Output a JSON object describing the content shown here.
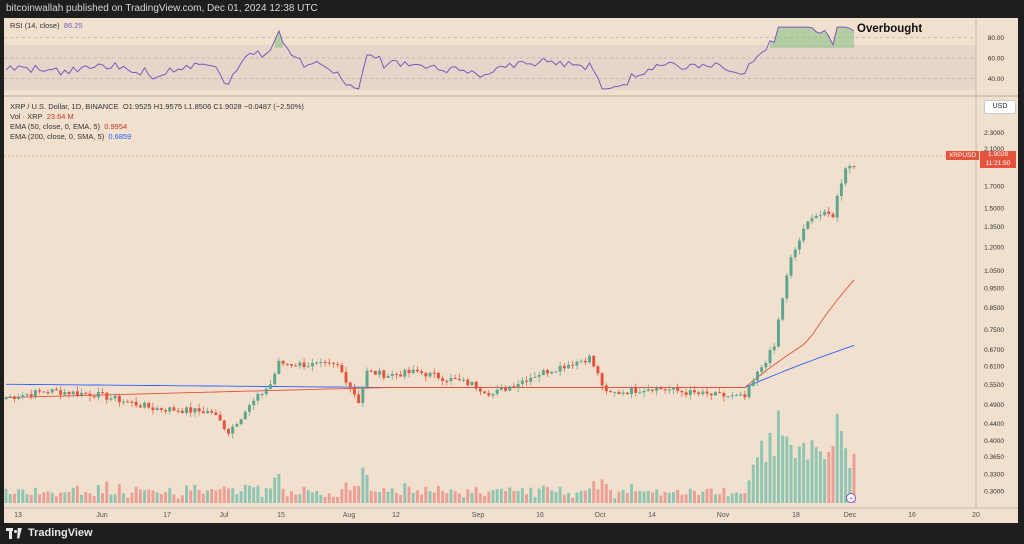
{
  "header": {
    "published": "bitcoinwallah published on TradingView.com, Dec 01, 2024 12:38 UTC"
  },
  "branding": {
    "logo_text": "TradingView"
  },
  "rsi_panel": {
    "label": "RSI (14, close)",
    "value": "86.25",
    "annotation": "Overbought",
    "ticks": [
      "80.00",
      "60.00",
      "40.00"
    ]
  },
  "main_panel": {
    "symbol_line": "XRP / U.S. Dollar, 1D, BINANCE",
    "ohlc": {
      "o": "O1.9525",
      "h": "H1.9575",
      "l": "L1.8506",
      "c": "C1.9028",
      "chg": "−0.0487 (−2.50%)"
    },
    "vol_label": "Vol · XRP",
    "vol_value": "23.64 M",
    "ema50_label": "EMA (50, close, 0, EMA, 5)",
    "ema50_value": "0.9954",
    "ema200_label": "EMA (200, close, 0, SMA, 5)",
    "ema200_value": "0.6859",
    "currency": "USD",
    "price_tag": {
      "symbol": "XRPUSD",
      "price": "1.9028",
      "countdown": "11:21:50"
    }
  },
  "colors": {
    "up": "#5ea58e",
    "down": "#e5533d",
    "vol_up": "#8fc5b3",
    "vol_down": "#eb9f95",
    "rsi_line": "#7e57c2",
    "ema50": "#e5533d",
    "ema200": "#2962ff",
    "background": "#f0e0cd"
  },
  "chart_data": {
    "type": "candlestick",
    "title": "XRP / U.S. Dollar, 1D, BINANCE",
    "scale": "log",
    "ylim": [
      0.28,
      2.5
    ],
    "y_ticks": [
      "2.3000",
      "2.1000",
      "1.9028",
      "1.7000",
      "1.5000",
      "1.3500",
      "1.2000",
      "1.0500",
      "0.9500",
      "0.8500",
      "0.7500",
      "0.6700",
      "0.6100",
      "0.5500",
      "0.4900",
      "0.4400",
      "0.4000",
      "0.3650",
      "0.3300",
      "0.3000"
    ],
    "x_ticks": [
      "13",
      "Jun",
      "17",
      "Jul",
      "15",
      "Aug",
      "12",
      "Sep",
      "16",
      "Oct",
      "14",
      "Nov",
      "18",
      "Dec",
      "16",
      "20"
    ],
    "price": [
      {
        "date": "May 13",
        "close": 0.51
      },
      {
        "date": "May 23",
        "close": 0.53
      },
      {
        "date": "Jun 03",
        "close": 0.52
      },
      {
        "date": "Jun 17",
        "close": 0.48
      },
      {
        "date": "Jul 01",
        "close": 0.47
      },
      {
        "date": "Jul 05",
        "close": 0.42
      },
      {
        "date": "Jul 15",
        "close": 0.55
      },
      {
        "date": "Jul 17",
        "close": 0.62
      },
      {
        "date": "Jul 31",
        "close": 0.61
      },
      {
        "date": "Aug 05",
        "close": 0.5
      },
      {
        "date": "Aug 07",
        "close": 0.59
      },
      {
        "date": "Aug 12",
        "close": 0.58
      },
      {
        "date": "Aug 19",
        "close": 0.59
      },
      {
        "date": "Sep 01",
        "close": 0.55
      },
      {
        "date": "Sep 06",
        "close": 0.52
      },
      {
        "date": "Sep 16",
        "close": 0.58
      },
      {
        "date": "Sep 29",
        "close": 0.64
      },
      {
        "date": "Oct 03",
        "close": 0.52
      },
      {
        "date": "Oct 14",
        "close": 0.54
      },
      {
        "date": "Oct 25",
        "close": 0.52
      },
      {
        "date": "Nov 05",
        "close": 0.51
      },
      {
        "date": "Nov 12",
        "close": 0.68
      },
      {
        "date": "Nov 16",
        "close": 1.12
      },
      {
        "date": "Nov 21",
        "close": 1.44
      },
      {
        "date": "Nov 26",
        "close": 1.44
      },
      {
        "date": "Nov 29",
        "close": 1.9
      },
      {
        "date": "Dec 01",
        "close": 1.9028
      }
    ],
    "ema50": [
      {
        "date": "May 13",
        "value": 0.51
      },
      {
        "date": "Aug 12",
        "value": 0.54
      },
      {
        "date": "Nov 05",
        "value": 0.54
      },
      {
        "date": "Nov 20",
        "value": 0.7
      },
      {
        "date": "Dec 01",
        "value": 0.9954
      }
    ],
    "ema200": [
      {
        "date": "May 13",
        "value": 0.55
      },
      {
        "date": "Aug 12",
        "value": 0.54
      },
      {
        "date": "Nov 05",
        "value": 0.54
      },
      {
        "date": "Dec 01",
        "value": 0.6859
      }
    ],
    "rsi": {
      "ticks": [
        40,
        60,
        80
      ],
      "ylim": [
        25,
        95
      ],
      "last": 86.25
    }
  }
}
